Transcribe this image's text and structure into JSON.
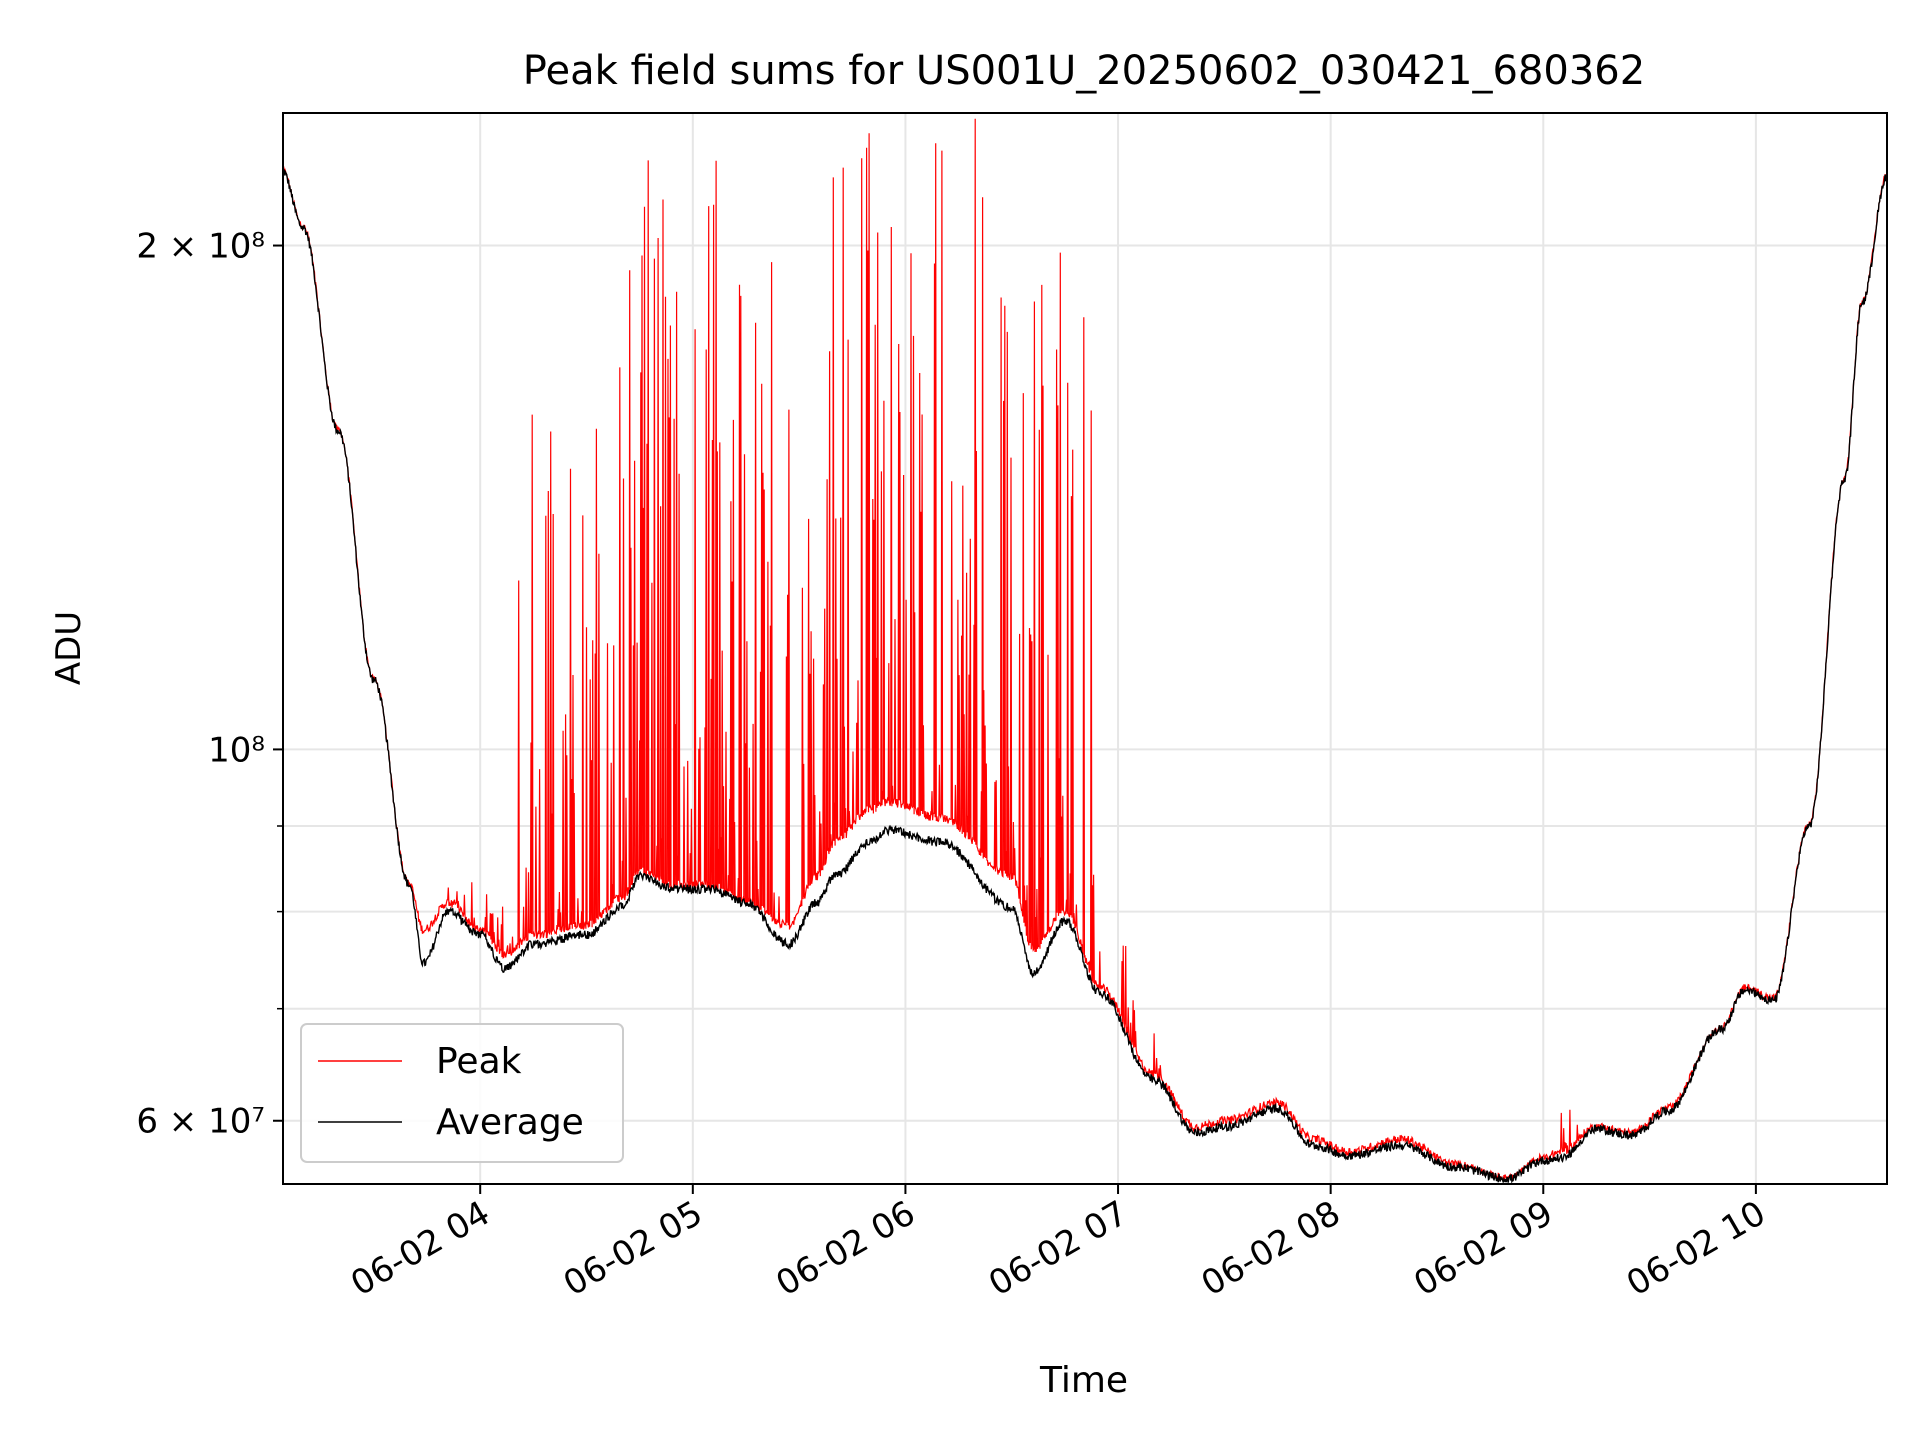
{
  "chart_data": {
    "type": "line",
    "title": "Peak field sums for US001U_20250602_030421_680362",
    "xlabel": "Time",
    "ylabel": "ADU",
    "x_axis": {
      "type": "time",
      "range": [
        "2025-06-02 03:04:21",
        "2025-06-02 10:37:00"
      ],
      "tick_labels": [
        "06-02 04",
        "06-02 05",
        "06-02 06",
        "06-02 07",
        "06-02 08",
        "06-02 09",
        "06-02 10"
      ],
      "tick_values": [
        "2025-06-02 04:00",
        "2025-06-02 05:00",
        "2025-06-02 06:00",
        "2025-06-02 07:00",
        "2025-06-02 08:00",
        "2025-06-02 09:00",
        "2025-06-02 10:00"
      ]
    },
    "y_axis": {
      "scale": "log",
      "range": [
        55000000,
        240000000
      ],
      "major_ticks": [
        {
          "value": 60000000,
          "label": "6 × 10⁷"
        },
        {
          "value": 100000000,
          "label": "10⁸"
        },
        {
          "value": 200000000,
          "label": "2 × 10⁸"
        }
      ],
      "minor_ticks": [
        70000000,
        80000000,
        90000000
      ]
    },
    "grid": true,
    "legend_position": "lower-left",
    "series": [
      {
        "name": "Peak",
        "color": "#ff0000",
        "points": [
          [
            "03:04",
            222000000
          ],
          [
            "03:10",
            205000000
          ],
          [
            "03:20",
            155000000
          ],
          [
            "03:30",
            110000000
          ],
          [
            "03:40",
            83000000
          ],
          [
            "03:44",
            78000000
          ],
          [
            "03:51",
            81000000
          ],
          [
            "04:00",
            78000000
          ],
          [
            "04:07",
            75500000
          ],
          [
            "04:15",
            77500000
          ],
          [
            "04:30",
            78500000
          ],
          [
            "04:40",
            81500000
          ],
          [
            "04:45",
            84500000
          ],
          [
            "04:55",
            83000000
          ],
          [
            "05:05",
            83000000
          ],
          [
            "05:15",
            81000000
          ],
          [
            "05:27",
            78500000
          ],
          [
            "05:35",
            84000000
          ],
          [
            "05:40",
            88000000
          ],
          [
            "05:50",
            92000000
          ],
          [
            "05:55",
            93000000
          ],
          [
            "06:10",
            91000000
          ],
          [
            "06:30",
            84000000
          ],
          [
            "06:36",
            76000000
          ],
          [
            "06:45",
            80000000
          ],
          [
            "06:55",
            72000000
          ],
          [
            "07:10",
            64000000
          ],
          [
            "07:22",
            59500000
          ],
          [
            "07:30",
            60000000
          ],
          [
            "07:45",
            61500000
          ],
          [
            "07:55",
            58500000
          ],
          [
            "08:05",
            57500000
          ],
          [
            "08:20",
            58500000
          ],
          [
            "08:35",
            56500000
          ],
          [
            "08:50",
            55400000
          ],
          [
            "09:00",
            57000000
          ],
          [
            "09:05",
            57500000
          ],
          [
            "09:15",
            59500000
          ],
          [
            "09:25",
            59000000
          ],
          [
            "09:35",
            61000000
          ],
          [
            "09:50",
            68000000
          ],
          [
            "09:57",
            72000000
          ],
          [
            "10:05",
            71000000
          ],
          [
            "10:15",
            90000000
          ],
          [
            "10:25",
            145000000
          ],
          [
            "10:30",
            185000000
          ],
          [
            "10:37",
            220000000
          ]
        ],
        "spike_windows": [
          {
            "start": "03:51",
            "end": "04:10",
            "max": 84000000
          },
          {
            "start": "04:10",
            "end": "04:40",
            "max": 170000000
          },
          {
            "start": "04:40",
            "end": "05:25",
            "max": 230000000
          },
          {
            "start": "05:25",
            "end": "05:35",
            "max": 160000000
          },
          {
            "start": "05:35",
            "end": "05:55",
            "max": 235000000
          },
          {
            "start": "05:55",
            "end": "06:25",
            "max": 240000000
          },
          {
            "start": "06:25",
            "end": "06:55",
            "max": 200000000
          },
          {
            "start": "07:00",
            "end": "07:05",
            "max": 80000000
          },
          {
            "start": "07:10",
            "end": "07:12",
            "max": 69000000
          },
          {
            "start": "09:05",
            "end": "09:10",
            "max": 61000000
          }
        ]
      },
      {
        "name": "Average",
        "color": "#000000",
        "points": [
          [
            "03:04",
            222000000
          ],
          [
            "03:10",
            205000000
          ],
          [
            "03:20",
            155000000
          ],
          [
            "03:30",
            110000000
          ],
          [
            "03:40",
            83000000
          ],
          [
            "03:44",
            74500000
          ],
          [
            "03:51",
            80000000
          ],
          [
            "04:00",
            77500000
          ],
          [
            "04:07",
            74000000
          ],
          [
            "04:15",
            76500000
          ],
          [
            "04:30",
            77500000
          ],
          [
            "04:40",
            80500000
          ],
          [
            "04:45",
            84000000
          ],
          [
            "04:55",
            82500000
          ],
          [
            "05:05",
            82500000
          ],
          [
            "05:15",
            81000000
          ],
          [
            "05:27",
            76500000
          ],
          [
            "05:35",
            81000000
          ],
          [
            "05:40",
            84000000
          ],
          [
            "05:50",
            88000000
          ],
          [
            "05:55",
            89500000
          ],
          [
            "06:10",
            88000000
          ],
          [
            "06:30",
            80500000
          ],
          [
            "06:36",
            73500000
          ],
          [
            "06:45",
            79000000
          ],
          [
            "06:55",
            71500000
          ],
          [
            "07:10",
            63500000
          ],
          [
            "07:22",
            59000000
          ],
          [
            "07:30",
            59500000
          ],
          [
            "07:45",
            61000000
          ],
          [
            "07:55",
            58000000
          ],
          [
            "08:05",
            57200000
          ],
          [
            "08:20",
            58000000
          ],
          [
            "08:35",
            56300000
          ],
          [
            "08:50",
            55400000
          ],
          [
            "09:00",
            56800000
          ],
          [
            "09:05",
            57000000
          ],
          [
            "09:15",
            59300000
          ],
          [
            "09:25",
            58800000
          ],
          [
            "09:35",
            60800000
          ],
          [
            "09:50",
            68000000
          ],
          [
            "09:57",
            71800000
          ],
          [
            "10:05",
            70800000
          ],
          [
            "10:15",
            90000000
          ],
          [
            "10:25",
            145000000
          ],
          [
            "10:30",
            185000000
          ],
          [
            "10:37",
            220000000
          ]
        ]
      }
    ]
  }
}
